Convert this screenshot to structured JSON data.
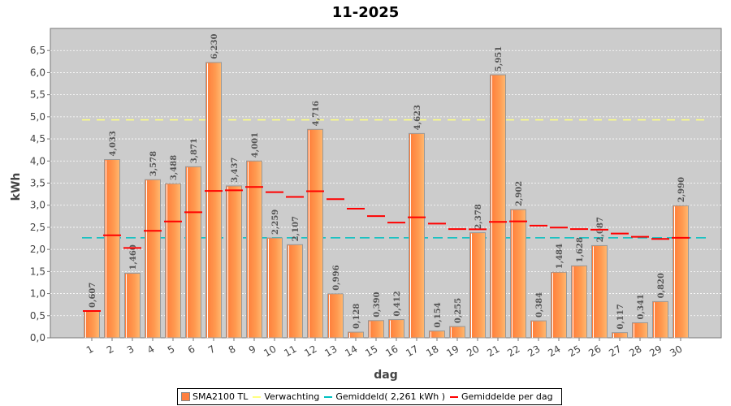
{
  "chart_data": {
    "type": "bar",
    "title": "11-2025",
    "xlabel": "dag",
    "ylabel": "kWh",
    "ylim": [
      0,
      7.0
    ],
    "yticks": [
      "0,0",
      "0,5",
      "1,0",
      "1,5",
      "2,0",
      "2,5",
      "3,0",
      "3,5",
      "4,0",
      "4,5",
      "5,0",
      "5,5",
      "6,0",
      "6,5"
    ],
    "categories": [
      "1",
      "2",
      "3",
      "4",
      "5",
      "6",
      "7",
      "8",
      "9",
      "10",
      "11",
      "12",
      "13",
      "14",
      "15",
      "16",
      "17",
      "18",
      "19",
      "20",
      "21",
      "22",
      "23",
      "24",
      "25",
      "26",
      "27",
      "28",
      "29",
      "30"
    ],
    "series": [
      {
        "name": "SMA2100 TL",
        "type": "bar",
        "color": "#ff8040",
        "values": [
          0.607,
          4.033,
          1.46,
          3.578,
          3.488,
          3.871,
          6.23,
          3.437,
          4.001,
          2.259,
          2.107,
          4.716,
          0.996,
          0.128,
          0.39,
          0.412,
          4.623,
          0.154,
          0.255,
          2.378,
          5.951,
          2.902,
          0.384,
          1.484,
          1.628,
          2.087,
          0.117,
          0.341,
          0.82,
          2.99
        ],
        "labels": [
          "0,607",
          "4,033",
          "1,460",
          "3,578",
          "3,488",
          "3,871",
          "6,230",
          "3,437",
          "4,001",
          "2,259",
          "2,107",
          "4,716",
          "0,996",
          "0,128",
          "0,390",
          "0,412",
          "4,623",
          "0,154",
          "0,255",
          "2,378",
          "5,951",
          "2,902",
          "0,384",
          "1,484",
          "1,628",
          "2,087",
          "0,117",
          "0,341",
          "0,820",
          "2,990"
        ]
      },
      {
        "name": "Verwachting",
        "type": "hline",
        "color": "#ffff80",
        "value": 4.93
      },
      {
        "name": "Gemiddeld( 2,261 kWh )",
        "type": "hline",
        "color": "#00c0c0",
        "value": 2.261
      },
      {
        "name": "Gemiddelde per dag",
        "type": "step",
        "color": "#ff0000",
        "values": [
          0.607,
          2.32,
          2.033,
          2.42,
          2.633,
          2.84,
          3.324,
          3.338,
          3.412,
          3.296,
          3.188,
          3.316,
          3.137,
          2.922,
          2.753,
          2.607,
          2.726,
          2.583,
          2.46,
          2.456,
          2.623,
          2.635,
          2.537,
          2.493,
          2.459,
          2.445,
          2.358,
          2.286,
          2.236,
          2.261
        ]
      }
    ],
    "grid": true,
    "legend": "bottom"
  }
}
